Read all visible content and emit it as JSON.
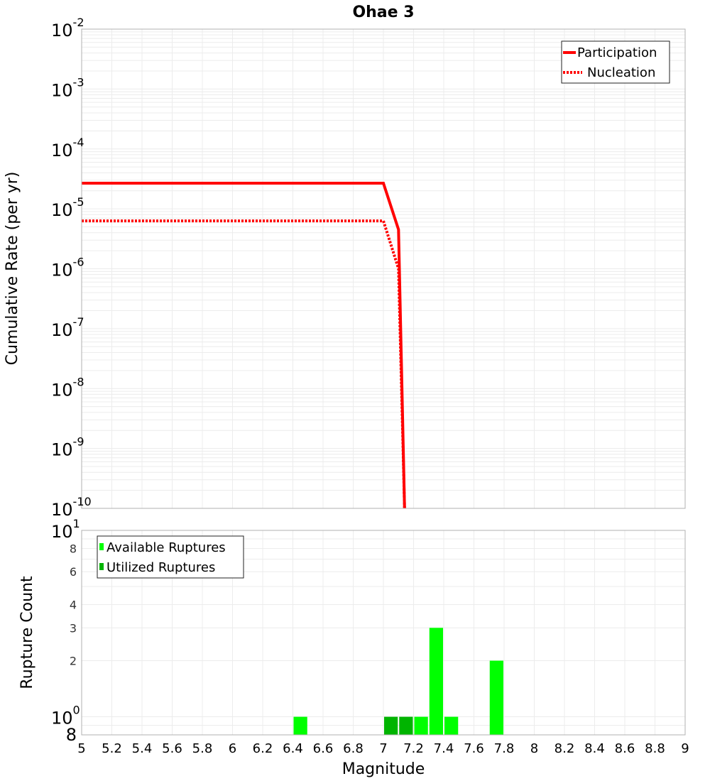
{
  "chart_data": [
    {
      "type": "line",
      "title": "Ohae 3",
      "xlabel": "Magnitude",
      "ylabel": "Cumulative Rate (per yr)",
      "xlim": [
        5,
        9
      ],
      "ylim": [
        1e-10,
        0.01
      ],
      "yscale": "log",
      "grid": true,
      "legend_position": "upper right",
      "y_tick_labels": [
        "10^-2",
        "10^-3",
        "10^-4",
        "10^-5",
        "10^-6",
        "10^-7",
        "10^-8",
        "10^-9",
        "10^-10"
      ],
      "series": [
        {
          "name": "Participation",
          "style": "solid",
          "color": "#ff0000",
          "x": [
            5.0,
            7.0,
            7.1,
            7.14
          ],
          "y": [
            2.68e-05,
            2.68e-05,
            4.5e-06,
            1e-10
          ]
        },
        {
          "name": "Nucleation",
          "style": "dotted",
          "color": "#ff0000",
          "x": [
            5.0,
            7.0,
            7.1,
            7.14
          ],
          "y": [
            6.3e-06,
            6.3e-06,
            1e-06,
            1e-10
          ]
        }
      ]
    },
    {
      "type": "bar",
      "title": "",
      "xlabel": "Magnitude",
      "ylabel": "Rupture Count",
      "xlim": [
        5,
        9
      ],
      "ylim": [
        0.8,
        10
      ],
      "yscale": "log",
      "grid": true,
      "legend_position": "upper left",
      "x_tick_labels": [
        "5",
        "5.2",
        "5.4",
        "5.6",
        "5.8",
        "6",
        "6.2",
        "6.4",
        "6.6",
        "6.8",
        "7",
        "7.2",
        "7.4",
        "7.6",
        "7.8",
        "8",
        "8.2",
        "8.4",
        "8.6",
        "8.8",
        "9"
      ],
      "y_tick_labels": [
        "10^1",
        "8",
        "6",
        "4",
        "3",
        "2",
        "10^0",
        "8"
      ],
      "series": [
        {
          "name": "Available Ruptures",
          "color": "#00ff00",
          "x": [
            6.45,
            7.25,
            7.35,
            7.45,
            7.75
          ],
          "values": [
            1,
            1,
            3,
            1,
            2
          ]
        },
        {
          "name": "Utilized Ruptures",
          "color": "#00b400",
          "x": [
            7.05,
            7.15
          ],
          "values": [
            1,
            1
          ]
        }
      ]
    }
  ],
  "labels": {
    "title": "Ohae 3",
    "top_ylabel": "Cumulative Rate (per yr)",
    "bottom_ylabel": "Rupture Count",
    "xlabel": "Magnitude",
    "legend_top": [
      "Participation",
      "Nucleation"
    ],
    "legend_bottom": [
      "Available Ruptures",
      "Utilized Ruptures"
    ]
  }
}
